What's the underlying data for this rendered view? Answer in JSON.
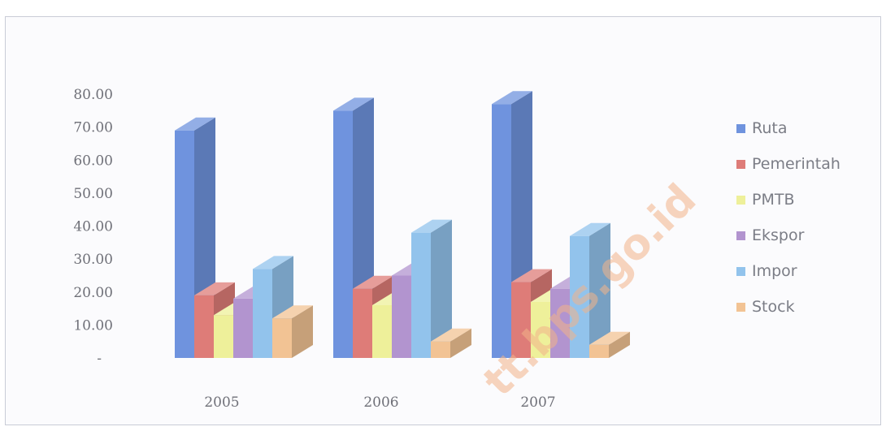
{
  "chart_data": {
    "type": "bar",
    "title": "",
    "xlabel": "",
    "ylabel": "",
    "categories": [
      "2005",
      "2006",
      "2007"
    ],
    "ylim": [
      0,
      80
    ],
    "yticks": [
      "",
      "10.00",
      "20.00",
      "30.00",
      "40.00",
      "50.00",
      "60.00",
      "70.00",
      "80.00"
    ],
    "legend_position": "right",
    "grid": false,
    "series": [
      {
        "name": "Ruta",
        "color": "#6f93de",
        "values": [
          69,
          75,
          77
        ]
      },
      {
        "name": "Pemerintah",
        "color": "#de7c78",
        "values": [
          19,
          21,
          23
        ]
      },
      {
        "name": "PMTB",
        "color": "#eef09a",
        "values": [
          13,
          16,
          17
        ]
      },
      {
        "name": "Ekspor",
        "color": "#b294cf",
        "values": [
          18,
          25,
          21
        ]
      },
      {
        "name": "Impor",
        "color": "#92c3ec",
        "values": [
          27,
          38,
          37
        ]
      },
      {
        "name": "Stock",
        "color": "#f2c394",
        "values": [
          12,
          5,
          4
        ]
      }
    ],
    "watermark": "tt.bps.go.id"
  }
}
